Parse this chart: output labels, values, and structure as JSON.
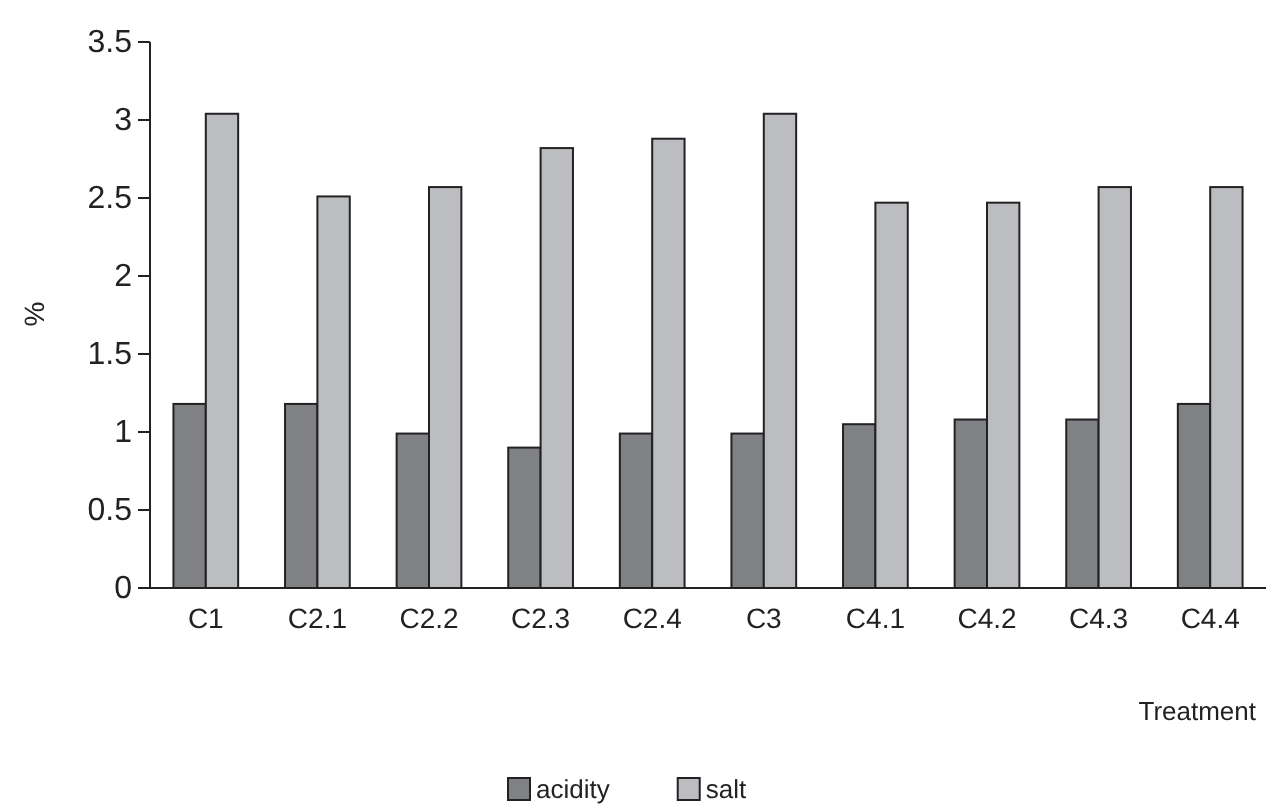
{
  "chart_data": {
    "type": "bar",
    "xlabel": "Treatment",
    "ylabel": "%",
    "categories": [
      "C1",
      "C2.1",
      "C2.2",
      "C2.3",
      "C2.4",
      "C3",
      "C4.1",
      "C4.2",
      "C4.3",
      "C4.4"
    ],
    "series": [
      {
        "name": "acidity",
        "color": "#808185",
        "values": [
          1.18,
          1.18,
          0.99,
          0.9,
          0.99,
          0.99,
          1.05,
          1.08,
          1.08,
          1.18
        ]
      },
      {
        "name": "salt",
        "color": "#bcbdc1",
        "values": [
          3.04,
          2.51,
          2.57,
          2.82,
          2.88,
          3.04,
          2.47,
          2.47,
          2.57,
          2.57
        ]
      }
    ],
    "ylim": [
      0,
      3.5
    ],
    "yticks": [
      0,
      0.5,
      1,
      1.5,
      2,
      2.5,
      3,
      3.5
    ],
    "grid": false,
    "legend": "bottom"
  }
}
